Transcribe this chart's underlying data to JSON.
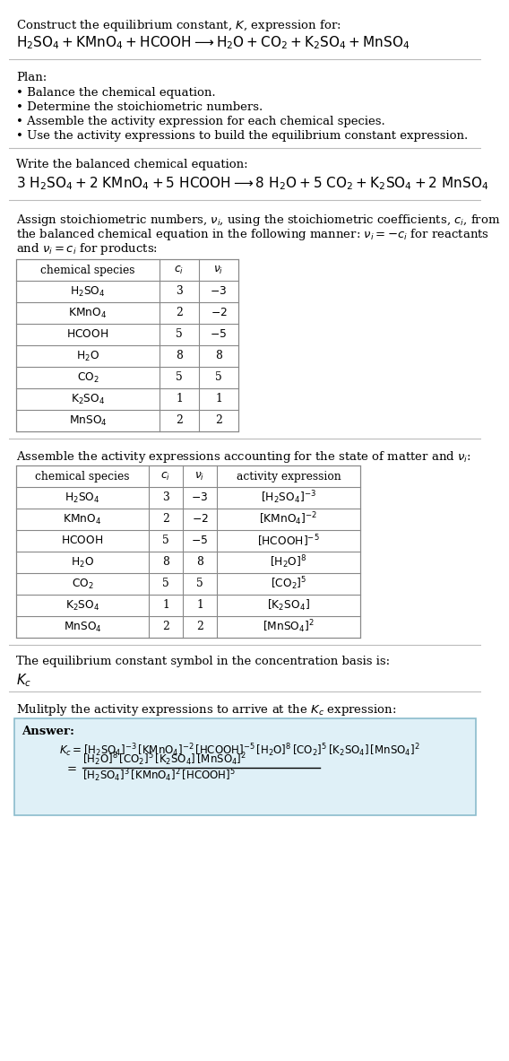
{
  "bg_color": "#ffffff",
  "text_color": "#000000",
  "title_line1": "Construct the equilibrium constant, $K$, expression for:",
  "title_line2": "$\\mathrm{H_2SO_4 + KMnO_4 + HCOOH \\longrightarrow H_2O + CO_2 + K_2SO_4 + MnSO_4}$",
  "plan_header": "Plan:",
  "plan_items": [
    "Balance the chemical equation.",
    "Determine the stoichiometric numbers.",
    "Assemble the activity expression for each chemical species.",
    "Use the activity expressions to build the equilibrium constant expression."
  ],
  "balanced_header": "Write the balanced chemical equation:",
  "balanced_eq": "$\\mathrm{3\\ H_2SO_4 + 2\\ KMnO_4 + 5\\ HCOOH \\longrightarrow 8\\ H_2O + 5\\ CO_2 + K_2SO_4 + 2\\ MnSO_4}$",
  "assign_header_parts": [
    "Assign stoichiometric numbers, $\\nu_i$, using the stoichiometric coefficients, $c_i$, from",
    "the balanced chemical equation in the following manner: $\\nu_i = -c_i$ for reactants",
    "and $\\nu_i = c_i$ for products:"
  ],
  "table1_headers": [
    "chemical species",
    "$c_i$",
    "$\\nu_i$"
  ],
  "table1_rows": [
    [
      "$\\mathrm{H_2SO_4}$",
      "3",
      "$-3$"
    ],
    [
      "$\\mathrm{KMnO_4}$",
      "2",
      "$-2$"
    ],
    [
      "$\\mathrm{HCOOH}$",
      "5",
      "$-5$"
    ],
    [
      "$\\mathrm{H_2O}$",
      "8",
      "8"
    ],
    [
      "$\\mathrm{CO_2}$",
      "5",
      "5"
    ],
    [
      "$\\mathrm{K_2SO_4}$",
      "1",
      "1"
    ],
    [
      "$\\mathrm{MnSO_4}$",
      "2",
      "2"
    ]
  ],
  "assemble_header": "Assemble the activity expressions accounting for the state of matter and $\\nu_i$:",
  "table2_headers": [
    "chemical species",
    "$c_i$",
    "$\\nu_i$",
    "activity expression"
  ],
  "table2_rows": [
    [
      "$\\mathrm{H_2SO_4}$",
      "3",
      "$-3$",
      "$[\\mathrm{H_2SO_4}]^{-3}$"
    ],
    [
      "$\\mathrm{KMnO_4}$",
      "2",
      "$-2$",
      "$[\\mathrm{KMnO_4}]^{-2}$"
    ],
    [
      "$\\mathrm{HCOOH}$",
      "5",
      "$-5$",
      "$[\\mathrm{HCOOH}]^{-5}$"
    ],
    [
      "$\\mathrm{H_2O}$",
      "8",
      "8",
      "$[\\mathrm{H_2O}]^{8}$"
    ],
    [
      "$\\mathrm{CO_2}$",
      "5",
      "5",
      "$[\\mathrm{CO_2}]^{5}$"
    ],
    [
      "$\\mathrm{K_2SO_4}$",
      "1",
      "1",
      "$[\\mathrm{K_2SO_4}]$"
    ],
    [
      "$\\mathrm{MnSO_4}$",
      "2",
      "2",
      "$[\\mathrm{MnSO_4}]^{2}$"
    ]
  ],
  "kc_header": "The equilibrium constant symbol in the concentration basis is:",
  "kc_symbol": "$K_c$",
  "multiply_header": "Mulitply the activity expressions to arrive at the $K_c$ expression:",
  "answer_label": "Answer:",
  "answer_box_color": "#dff0f7",
  "answer_box_border": "#8bbccc",
  "answer_line1": "$K_c = [\\mathrm{H_2SO_4}]^{-3}\\,[\\mathrm{KMnO_4}]^{-2}\\,[\\mathrm{HCOOH}]^{-5}\\,[\\mathrm{H_2O}]^{8}\\,[\\mathrm{CO_2}]^{5}\\,[\\mathrm{K_2SO_4}]\\,[\\mathrm{MnSO_4}]^{2}$",
  "answer_eq_sign": "$=$",
  "answer_line2_num": "$[\\mathrm{H_2O}]^{8}\\,[\\mathrm{CO_2}]^{5}\\,[\\mathrm{K_2SO_4}]\\,[\\mathrm{MnSO_4}]^{2}$",
  "answer_line2_den": "$[\\mathrm{H_2SO_4}]^{3}\\,[\\mathrm{KMnO_4}]^{2}\\,[\\mathrm{HCOOH}]^{5}$"
}
